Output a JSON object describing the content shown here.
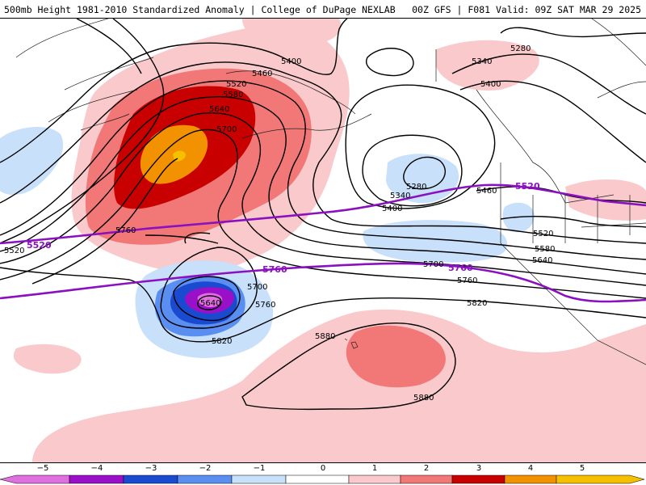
{
  "header": {
    "left_title": "500mb Height 1981-2010 Standardized Anomaly | College of DuPage NEXLAB",
    "right_title": "00Z GFS | F081 Valid: 09Z SAT MAR 29 2025"
  },
  "colors": {
    "neg5": "#e070e0",
    "neg4": "#9a10c8",
    "neg3": "#1a4ad0",
    "neg2": "#5a8ef0",
    "neg1": "#c8e0fa",
    "zero": "#ffffff",
    "pos1": "#f9c9cb",
    "pos2": "#f27878",
    "pos3": "#c80000",
    "pos4": "#f39200",
    "pos5": "#f6c000",
    "contour": "#000000",
    "reference_contour": "#8a10c0"
  },
  "colorbar": {
    "ticks": [
      "−5",
      "−4",
      "−3",
      "−2",
      "−1",
      "0",
      "1",
      "2",
      "3",
      "4",
      "5"
    ]
  },
  "contour_labels": {
    "l5400a": "5400",
    "l5460a": "5460",
    "l5520a": "5520",
    "l5580a": "5580",
    "l5640a": "5640",
    "l5700a": "5700",
    "l5760a": "5760",
    "l5340b": "5340",
    "l5400b": "5400",
    "l5280b": "5280",
    "l5280c": "5280",
    "l5340c": "5340",
    "l5400c": "5400",
    "l5460c": "5460",
    "l5520c": "5520",
    "l5580c": "5580",
    "l5640c": "5640",
    "l5700c": "5700",
    "l5760c": "5760",
    "l5820c": "5820",
    "l5640d": "5640",
    "l5700d": "5700",
    "l5760d": "5760",
    "l5820d": "5820",
    "l5880a": "5880",
    "l5880b": "5880",
    "l5520w": "5520"
  },
  "reference_labels": {
    "p5520a": "5520",
    "p5520b": "5520",
    "p5760a": "5760",
    "p5760b": "5760"
  }
}
